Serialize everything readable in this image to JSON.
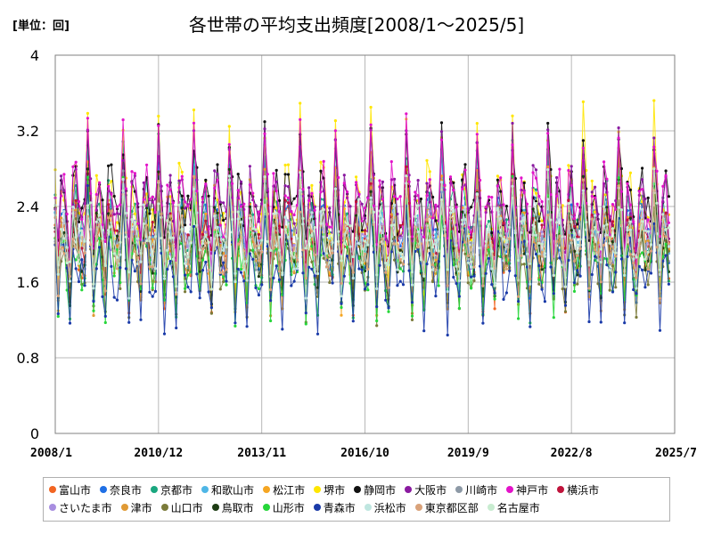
{
  "header": {
    "unit": "[単位：回]"
  },
  "chart_data": {
    "type": "line",
    "title": "各世帯の平均支出頻度[2008/1～2025/5]",
    "xlabel": "",
    "ylabel": "",
    "x_range": [
      "2008/1",
      "2025/7"
    ],
    "x_ticks": [
      "2008/1",
      "2010/12",
      "2013/11",
      "2016/10",
      "2019/9",
      "2022/8",
      "2025/7"
    ],
    "ylim": [
      0,
      4
    ],
    "y_ticks": [
      "0",
      "0.8",
      "1.6",
      "2.4",
      "3.2",
      "4"
    ],
    "grid": true,
    "legend_position": "bottom",
    "series": [
      {
        "name": "富山市",
        "color": "#f26522",
        "seasonal_peak": 2.7,
        "seasonal_low": 1.4
      },
      {
        "name": "奈良市",
        "color": "#1f6fe5",
        "seasonal_peak": 2.8,
        "seasonal_low": 1.5
      },
      {
        "name": "京都市",
        "color": "#1aa77f",
        "seasonal_peak": 3.0,
        "seasonal_low": 1.6
      },
      {
        "name": "和歌山市",
        "color": "#4fb6e6",
        "seasonal_peak": 2.7,
        "seasonal_low": 1.5
      },
      {
        "name": "松江市",
        "color": "#f5a623",
        "seasonal_peak": 2.8,
        "seasonal_low": 1.4
      },
      {
        "name": "堺市",
        "color": "#ffe600",
        "seasonal_peak": 3.3,
        "seasonal_low": 1.6
      },
      {
        "name": "静岡市",
        "color": "#111111",
        "seasonal_peak": 3.1,
        "seasonal_low": 1.9
      },
      {
        "name": "大阪市",
        "color": "#8a1aa0",
        "seasonal_peak": 3.1,
        "seasonal_low": 1.8
      },
      {
        "name": "川崎市",
        "color": "#8d99a6",
        "seasonal_peak": 2.6,
        "seasonal_low": 1.6
      },
      {
        "name": "神戸市",
        "color": "#e313c9",
        "seasonal_peak": 3.2,
        "seasonal_low": 1.8
      },
      {
        "name": "横浜市",
        "color": "#c0143c",
        "seasonal_peak": 2.6,
        "seasonal_low": 1.7
      },
      {
        "name": "さいたま市",
        "color": "#a88ee0",
        "seasonal_peak": 2.5,
        "seasonal_low": 1.6
      },
      {
        "name": "津市",
        "color": "#e09a35",
        "seasonal_peak": 2.6,
        "seasonal_low": 1.4
      },
      {
        "name": "山口市",
        "color": "#7b7b3a",
        "seasonal_peak": 2.5,
        "seasonal_low": 1.3
      },
      {
        "name": "鳥取市",
        "color": "#1e3d14",
        "seasonal_peak": 2.6,
        "seasonal_low": 1.5
      },
      {
        "name": "山形市",
        "color": "#26d63a",
        "seasonal_peak": 2.5,
        "seasonal_low": 1.3
      },
      {
        "name": "青森市",
        "color": "#1a3aa8",
        "seasonal_peak": 2.4,
        "seasonal_low": 1.2
      },
      {
        "name": "浜松市",
        "color": "#bfe6e0",
        "seasonal_peak": 2.6,
        "seasonal_low": 1.6
      },
      {
        "name": "東京都区部",
        "color": "#d9a27a",
        "seasonal_peak": 2.5,
        "seasonal_low": 1.6
      },
      {
        "name": "名古屋市",
        "color": "#c8ecd0",
        "seasonal_peak": 2.6,
        "seasonal_low": 1.7
      }
    ]
  }
}
